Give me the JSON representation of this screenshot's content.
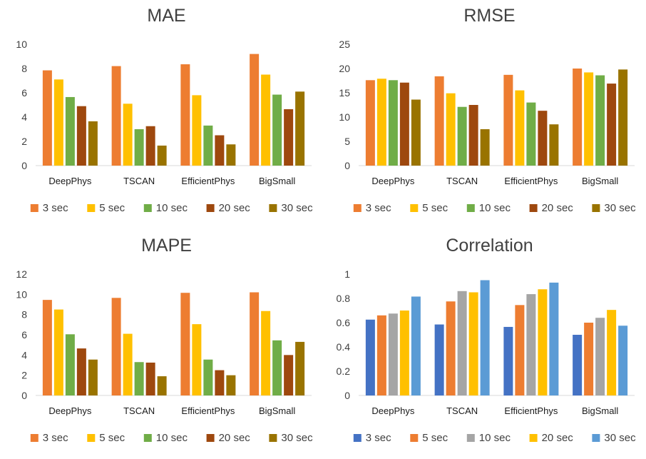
{
  "chart_data": [
    {
      "type": "bar",
      "title": "MAE",
      "categories": [
        "DeepPhys",
        "TSCAN",
        "EfficientPhys",
        "BigSmall"
      ],
      "ylim": [
        0,
        10
      ],
      "yticks": [
        "0",
        "2",
        "4",
        "6",
        "8",
        "10"
      ],
      "grid": false,
      "legend_position": "bottom",
      "series": [
        {
          "name": "3 sec",
          "color": "#ED7D31",
          "values": [
            7.85,
            8.2,
            8.35,
            9.2
          ]
        },
        {
          "name": "5 sec",
          "color": "#FFC000",
          "values": [
            7.1,
            5.1,
            5.8,
            7.5
          ]
        },
        {
          "name": "10 sec",
          "color": "#70AD47",
          "values": [
            5.65,
            3.0,
            3.3,
            5.85
          ]
        },
        {
          "name": "20 sec",
          "color": "#9E480E",
          "values": [
            4.9,
            3.25,
            2.5,
            4.65
          ]
        },
        {
          "name": "30 sec",
          "color": "#997300",
          "values": [
            3.65,
            1.65,
            1.75,
            6.1
          ]
        }
      ]
    },
    {
      "type": "bar",
      "title": "RMSE",
      "categories": [
        "DeepPhys",
        "TSCAN",
        "EfficientPhys",
        "BigSmall"
      ],
      "ylim": [
        0,
        25
      ],
      "yticks": [
        "0",
        "5",
        "10",
        "15",
        "20",
        "25"
      ],
      "grid": false,
      "legend_position": "bottom",
      "series": [
        {
          "name": "3 sec",
          "color": "#ED7D31",
          "values": [
            17.6,
            18.4,
            18.7,
            20.0
          ]
        },
        {
          "name": "5 sec",
          "color": "#FFC000",
          "values": [
            17.9,
            14.9,
            15.5,
            19.2
          ]
        },
        {
          "name": "10 sec",
          "color": "#70AD47",
          "values": [
            17.6,
            12.1,
            13.0,
            18.6
          ]
        },
        {
          "name": "20 sec",
          "color": "#9E480E",
          "values": [
            17.1,
            12.5,
            11.3,
            16.9
          ]
        },
        {
          "name": "30 sec",
          "color": "#997300",
          "values": [
            13.6,
            7.5,
            8.5,
            19.8
          ]
        }
      ]
    },
    {
      "type": "bar",
      "title": "MAPE",
      "categories": [
        "DeepPhys",
        "TSCAN",
        "EfficientPhys",
        "BigSmall"
      ],
      "ylim": [
        0,
        12
      ],
      "yticks": [
        "0",
        "2",
        "4",
        "6",
        "8",
        "10",
        "12"
      ],
      "grid": false,
      "legend_position": "bottom",
      "series": [
        {
          "name": "3 sec",
          "color": "#ED7D31",
          "values": [
            9.45,
            9.65,
            10.15,
            10.2
          ]
        },
        {
          "name": "5 sec",
          "color": "#FFC000",
          "values": [
            8.5,
            6.1,
            7.05,
            8.35
          ]
        },
        {
          "name": "10 sec",
          "color": "#70AD47",
          "values": [
            6.05,
            3.3,
            3.55,
            5.45
          ]
        },
        {
          "name": "20 sec",
          "color": "#9E480E",
          "values": [
            4.65,
            3.25,
            2.5,
            4.0
          ]
        },
        {
          "name": "30 sec",
          "color": "#997300",
          "values": [
            3.55,
            1.9,
            2.0,
            5.3
          ]
        }
      ]
    },
    {
      "type": "bar",
      "title": "Correlation",
      "categories": [
        "DeepPhys",
        "TSCAN",
        "EfficientPhys",
        "BigSmall"
      ],
      "ylim": [
        0,
        1
      ],
      "yticks": [
        "0",
        "0.2",
        "0.4",
        "0.6",
        "0.8",
        "1"
      ],
      "grid": false,
      "legend_position": "bottom",
      "series": [
        {
          "name": "3 sec",
          "color": "#4472C4",
          "values": [
            0.625,
            0.585,
            0.565,
            0.5
          ]
        },
        {
          "name": "5 sec",
          "color": "#ED7D31",
          "values": [
            0.66,
            0.775,
            0.745,
            0.6
          ]
        },
        {
          "name": "10 sec",
          "color": "#A5A5A5",
          "values": [
            0.675,
            0.86,
            0.835,
            0.64
          ]
        },
        {
          "name": "20 sec",
          "color": "#FFC000",
          "values": [
            0.7,
            0.85,
            0.875,
            0.705
          ]
        },
        {
          "name": "30 sec",
          "color": "#5B9BD5",
          "values": [
            0.815,
            0.95,
            0.93,
            0.575
          ]
        }
      ]
    }
  ]
}
